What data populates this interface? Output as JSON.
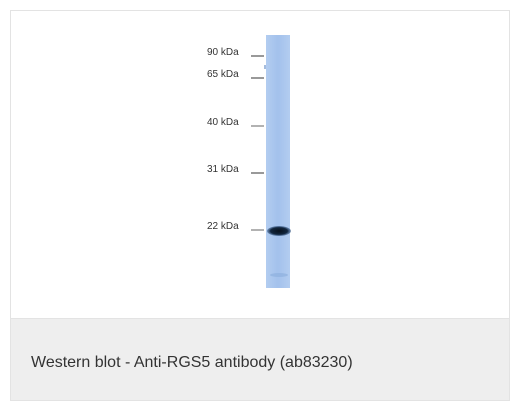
{
  "figure": {
    "type": "western-blot",
    "lane_color": "#a7c4ec",
    "band_color": "#0c1a2b",
    "markers": [
      {
        "label": "90 kDa"
      },
      {
        "label": "65 kDa"
      },
      {
        "label": "40 kDa"
      },
      {
        "label": "31 kDa"
      },
      {
        "label": "22 kDa"
      }
    ]
  },
  "caption": {
    "text": "Western blot - Anti-RGS5 antibody (ab83230)"
  }
}
